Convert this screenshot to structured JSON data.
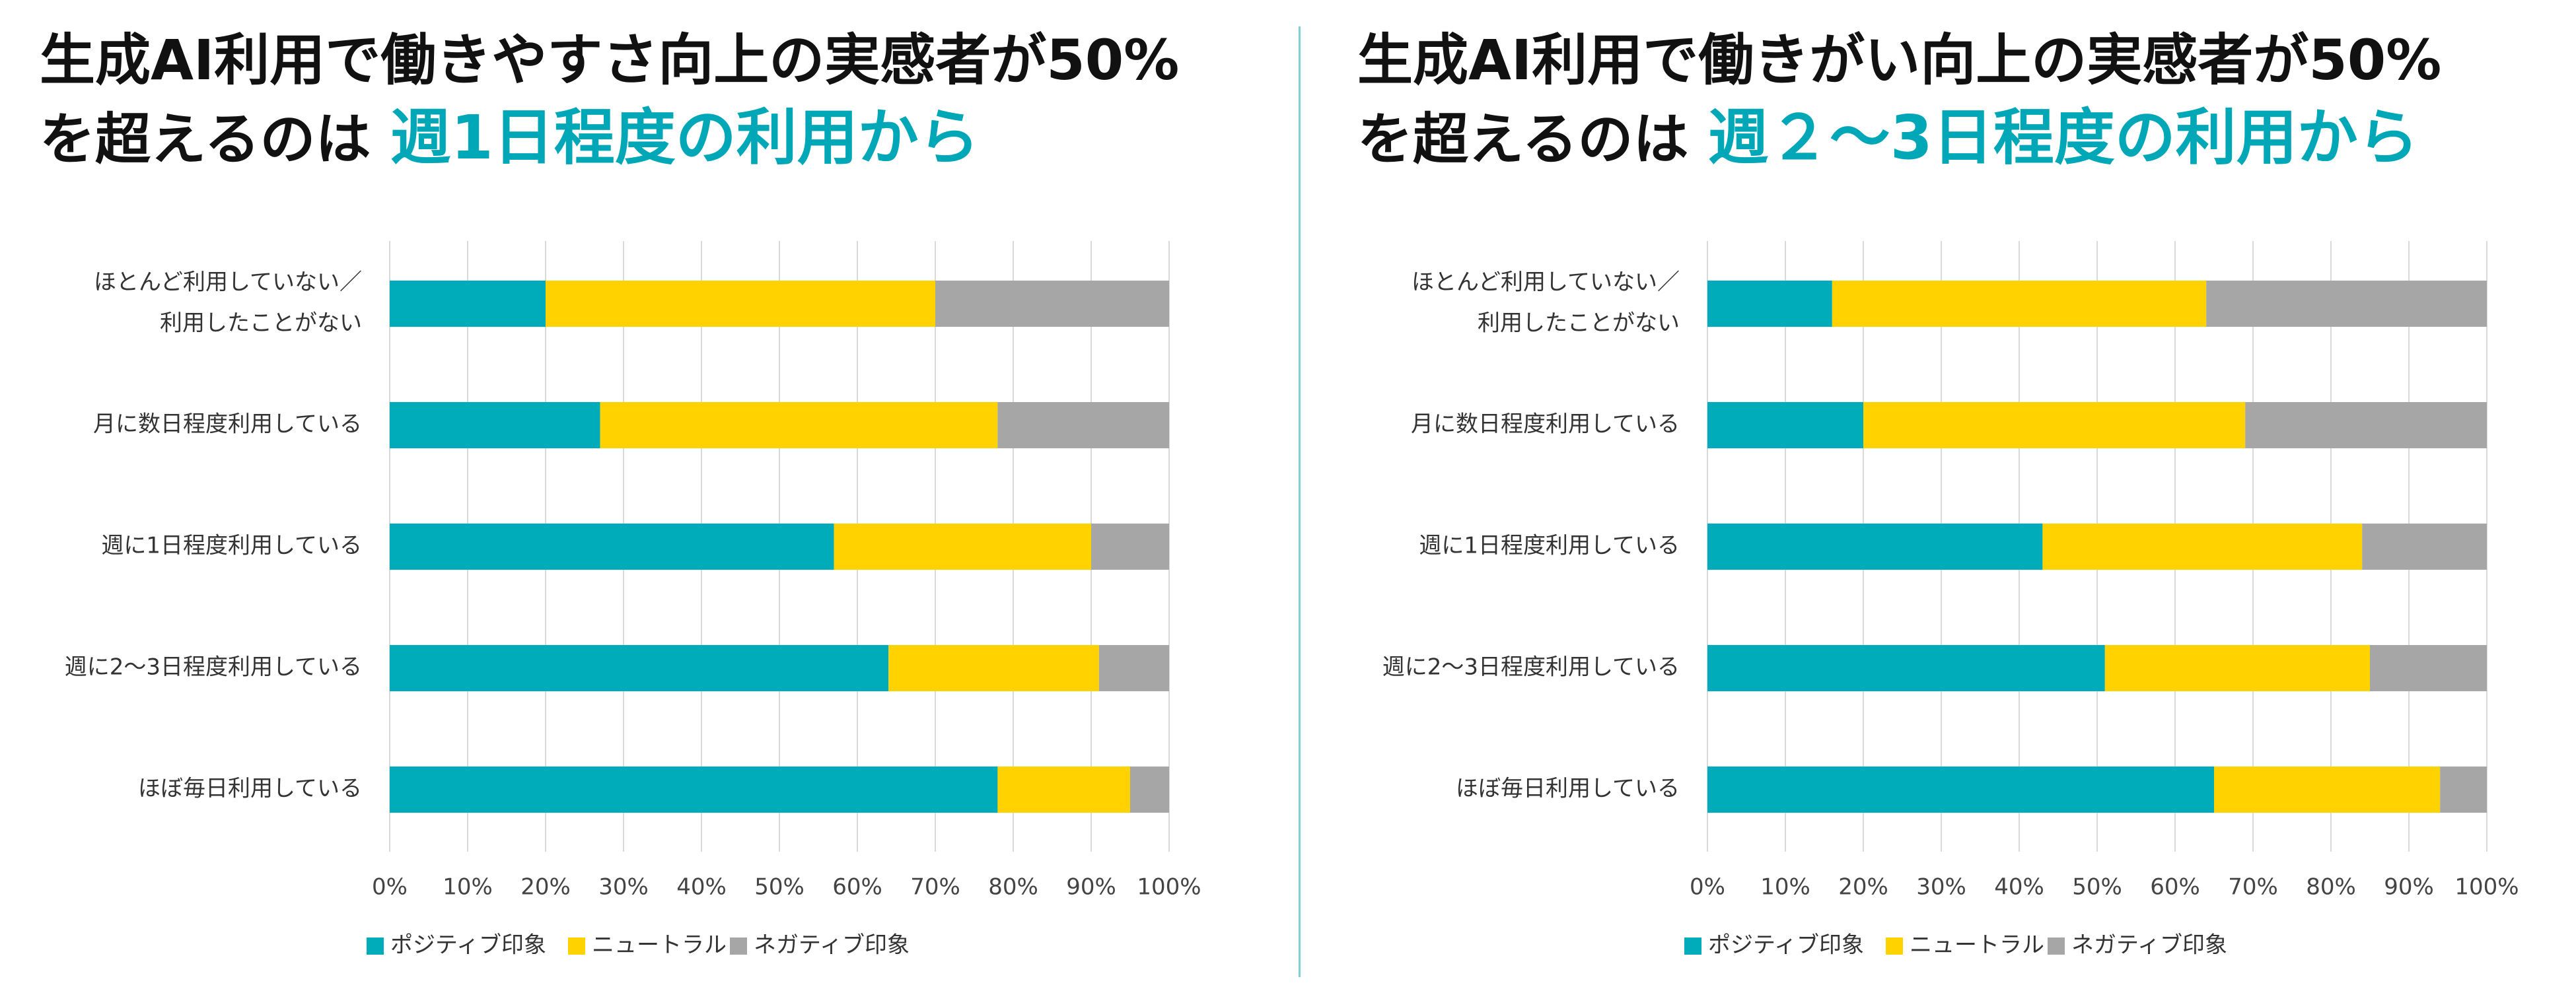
{
  "colors": {
    "positive": "#00abba",
    "neutral": "#ffd200",
    "negative": "#a6a6a6",
    "accent": "#00a7b7",
    "grid": "#d9d9d9"
  },
  "legend": [
    "ポジティブ印象",
    "ニュートラル",
    "ネガティブ印象"
  ],
  "charts": [
    {
      "title_line1": "生成AI利用で働きやすさ向上の実感者が50%",
      "title_line2_prefix": "を超えるのは",
      "title_line2_highlight": "週1日程度の利用から"
    },
    {
      "title_line1": "生成AI利用で働きがい向上の実感者が50%",
      "title_line2_prefix": "を超えるのは",
      "title_line2_highlight": "週２～3日程度の利用から"
    }
  ],
  "chart_data": [
    {
      "type": "bar",
      "orientation": "horizontal",
      "stacked": true,
      "categories": [
        [
          "ほとんど利用していない／",
          "利用したことがない"
        ],
        [
          "月に数日程度利用している"
        ],
        [
          "週に1日程度利用している"
        ],
        [
          "週に2～3日程度利用している"
        ],
        [
          "ほぼ毎日利用している"
        ]
      ],
      "series": [
        {
          "name": "ポジティブ印象",
          "values": [
            20,
            27,
            57,
            64,
            78
          ]
        },
        {
          "name": "ニュートラル",
          "values": [
            50,
            51,
            33,
            27,
            17
          ]
        },
        {
          "name": "ネガティブ印象",
          "values": [
            30,
            22,
            10,
            9,
            5
          ]
        }
      ],
      "xlim": [
        0,
        100
      ],
      "xticks": [
        "0%",
        "10%",
        "20%",
        "30%",
        "40%",
        "50%",
        "60%",
        "70%",
        "80%",
        "90%",
        "100%"
      ],
      "grid": true,
      "legend_position": "bottom-left"
    },
    {
      "type": "bar",
      "orientation": "horizontal",
      "stacked": true,
      "categories": [
        [
          "ほとんど利用していない／",
          "利用したことがない"
        ],
        [
          "月に数日程度利用している"
        ],
        [
          "週に1日程度利用している"
        ],
        [
          "週に2～3日程度利用している"
        ],
        [
          "ほぼ毎日利用している"
        ]
      ],
      "series": [
        {
          "name": "ポジティブ印象",
          "values": [
            16,
            20,
            43,
            51,
            65
          ]
        },
        {
          "name": "ニュートラル",
          "values": [
            48,
            49,
            41,
            34,
            29
          ]
        },
        {
          "name": "ネガティブ印象",
          "values": [
            36,
            31,
            16,
            15,
            6
          ]
        }
      ],
      "xlim": [
        0,
        100
      ],
      "xticks": [
        "0%",
        "10%",
        "20%",
        "30%",
        "40%",
        "50%",
        "60%",
        "70%",
        "80%",
        "90%",
        "100%"
      ],
      "grid": true,
      "legend_position": "bottom-left"
    }
  ]
}
